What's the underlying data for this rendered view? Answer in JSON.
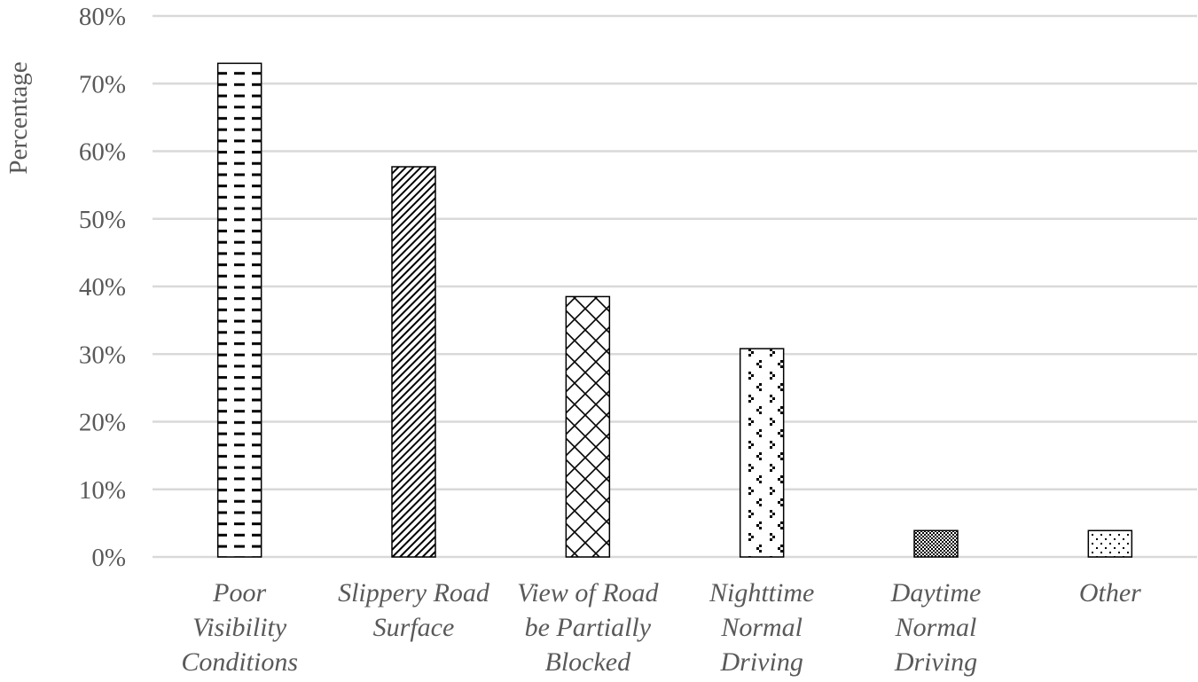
{
  "chart_data": {
    "type": "bar",
    "title": "",
    "xlabel": "",
    "ylabel": "Percentage",
    "ylim": [
      0,
      80
    ],
    "yticks": [
      0,
      10,
      20,
      30,
      40,
      50,
      60,
      70,
      80
    ],
    "ytick_labels": [
      "0%",
      "10%",
      "20%",
      "30%",
      "40%",
      "50%",
      "60%",
      "70%",
      "80%"
    ],
    "grid": true,
    "legend": "none",
    "categories": [
      [
        "Poor",
        "Visibility",
        "Conditions"
      ],
      [
        "Slippery Road",
        "Surface"
      ],
      [
        "View of Road",
        "be Partially",
        "Blocked"
      ],
      [
        "Nighttime",
        "Normal",
        "Driving"
      ],
      [
        "Daytime",
        "Normal",
        "Driving"
      ],
      [
        "Other"
      ]
    ],
    "values": [
      73,
      57.7,
      38.5,
      30.8,
      3.9,
      3.9
    ],
    "patterns": [
      "dashes",
      "diagonal-stripes",
      "diamond-grid",
      "zigzag-dots",
      "checker",
      "dots"
    ]
  }
}
